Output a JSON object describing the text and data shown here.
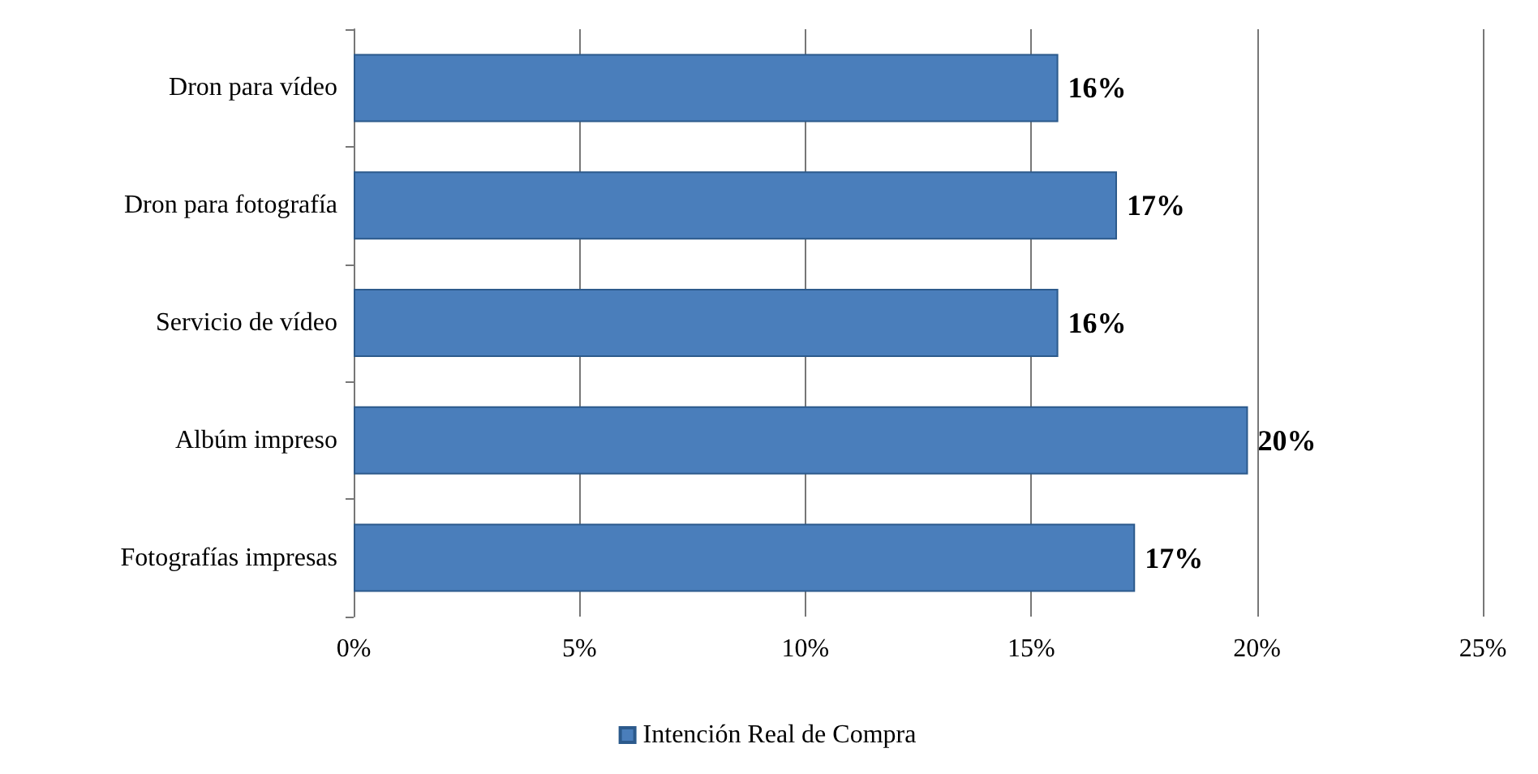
{
  "chart_data": {
    "type": "bar",
    "orientation": "horizontal",
    "categories": [
      "Dron para vídeo",
      "Dron para fotografía",
      "Servicio de vídeo",
      "Albúm impreso",
      "Fotografías impresas"
    ],
    "series": [
      {
        "name": "Intención Real de Compra",
        "color": "#4a7ebb",
        "values": [
          15.6,
          16.9,
          15.6,
          19.8,
          17.3
        ],
        "value_labels": [
          "16%",
          "17%",
          "16%",
          "20%",
          "17%"
        ]
      }
    ],
    "xlim": [
      0,
      25
    ],
    "xticks": [
      {
        "value": 0,
        "label": "0%"
      },
      {
        "value": 5,
        "label": "5%"
      },
      {
        "value": 10,
        "label": "10%"
      },
      {
        "value": 15,
        "label": "15%"
      },
      {
        "value": 20,
        "label": "20%"
      },
      {
        "value": 25,
        "label": "25%"
      }
    ],
    "grid": "x",
    "legend": "bottom"
  }
}
